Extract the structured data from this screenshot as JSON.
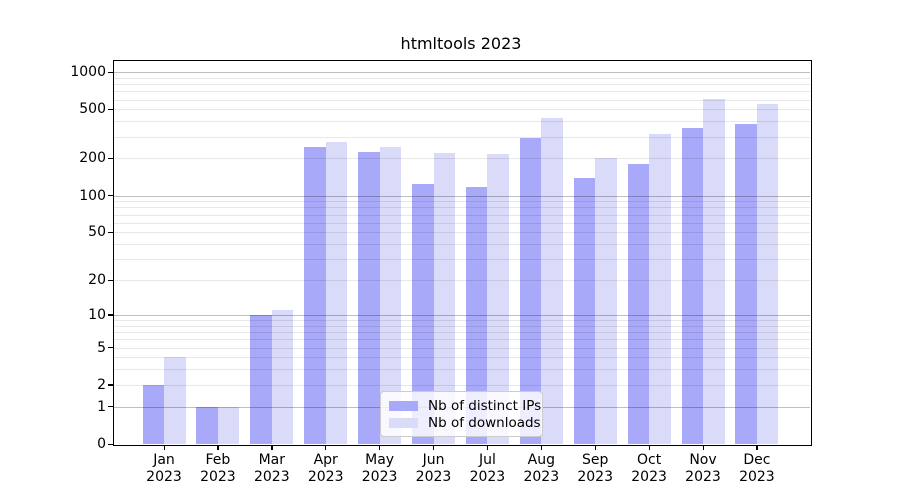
{
  "chart_data": {
    "type": "bar",
    "title": "htmltools 2023",
    "categories": [
      "Jan",
      "Feb",
      "Mar",
      "Apr",
      "May",
      "Jun",
      "Jul",
      "Aug",
      "Sep",
      "Oct",
      "Nov",
      "Dec"
    ],
    "x_year_label": "2023",
    "series": [
      {
        "name": "Nb of distinct IPs",
        "color": "#a9a9f9",
        "values": [
          2,
          1,
          10,
          249,
          227,
          124,
          118,
          293,
          140,
          180,
          352,
          382
        ]
      },
      {
        "name": "Nb of downloads",
        "color": "#dadaf9",
        "values": [
          4,
          1,
          11,
          272,
          248,
          220,
          218,
          423,
          202,
          318,
          610,
          550
        ]
      }
    ],
    "yscale": "log1p",
    "yticks": [
      0,
      1,
      2,
      5,
      10,
      20,
      50,
      100,
      200,
      500,
      1000
    ],
    "ylim": [
      0,
      1251
    ],
    "grid": {
      "major_at": "powers of 10",
      "minor_at": "2-9 per decade",
      "drawn_over_bars": true
    },
    "legend": {
      "position": "inside-bottom-center",
      "background": "rgba(255,255,255,0.8)",
      "border": "#cccccc"
    },
    "colors": {
      "background": "#ffffff",
      "frame": "#000000",
      "major_grid": "rgba(0,0,0,0.25)",
      "minor_grid": "rgba(0,0,0,0.09)",
      "text": "#000000"
    }
  }
}
